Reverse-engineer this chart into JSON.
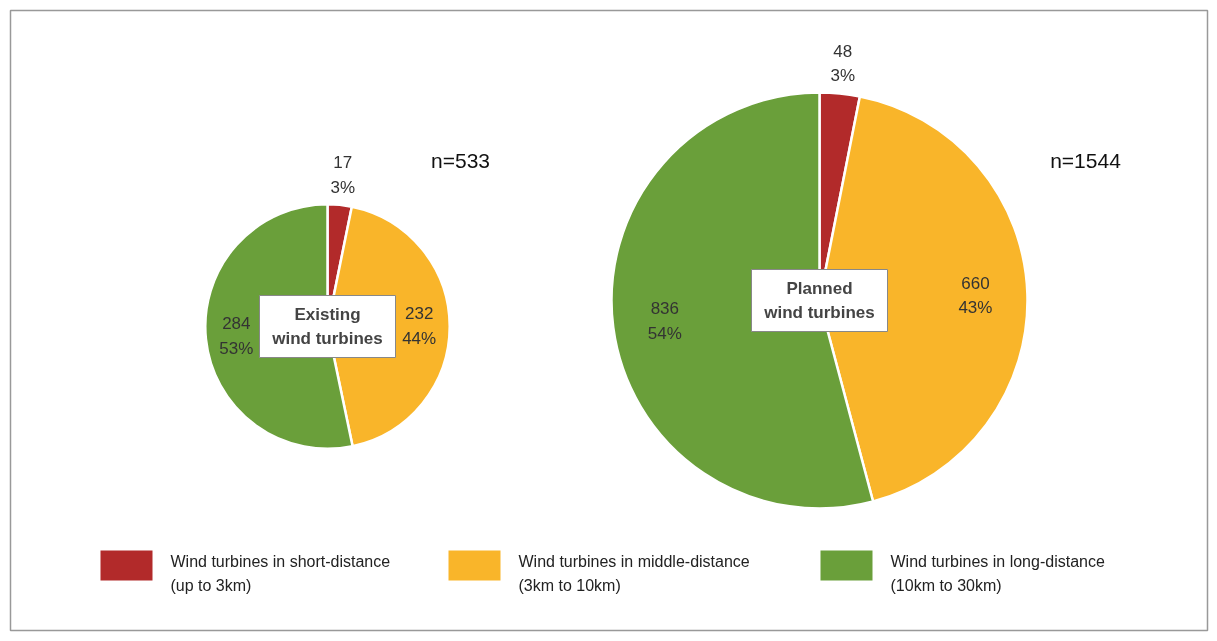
{
  "chart_data": [
    {
      "type": "pie",
      "title": "Existing\nwind turbines",
      "categories": [
        "Wind turbines in short-distance\n(up to 3km)",
        "Wind turbines in middle-distance\n(3km to 10km)",
        "Wind turbines in long-distance\n(10km to 30km)"
      ],
      "values": [
        17,
        232,
        284
      ],
      "colors": [
        "#b22a2a",
        "#f9b52a",
        "#6a9f3a"
      ],
      "value_labels": [
        "17\n3%",
        "232\n44%",
        "284\n53%"
      ],
      "annotations": [
        "n=533"
      ],
      "legend": "bottom"
    },
    {
      "type": "pie",
      "title": "Planned\nwind turbines",
      "categories": [
        null,
        null,
        null
      ],
      "values": [
        48,
        660,
        836
      ],
      "colors": [
        "#b22a2a",
        "#f9b52a",
        "#6a9f3a"
      ],
      "value_labels": [
        "48\n3%",
        "660\n43%",
        "836\n54%"
      ],
      "annotations": [
        "n=1544"
      ]
    }
  ]
}
